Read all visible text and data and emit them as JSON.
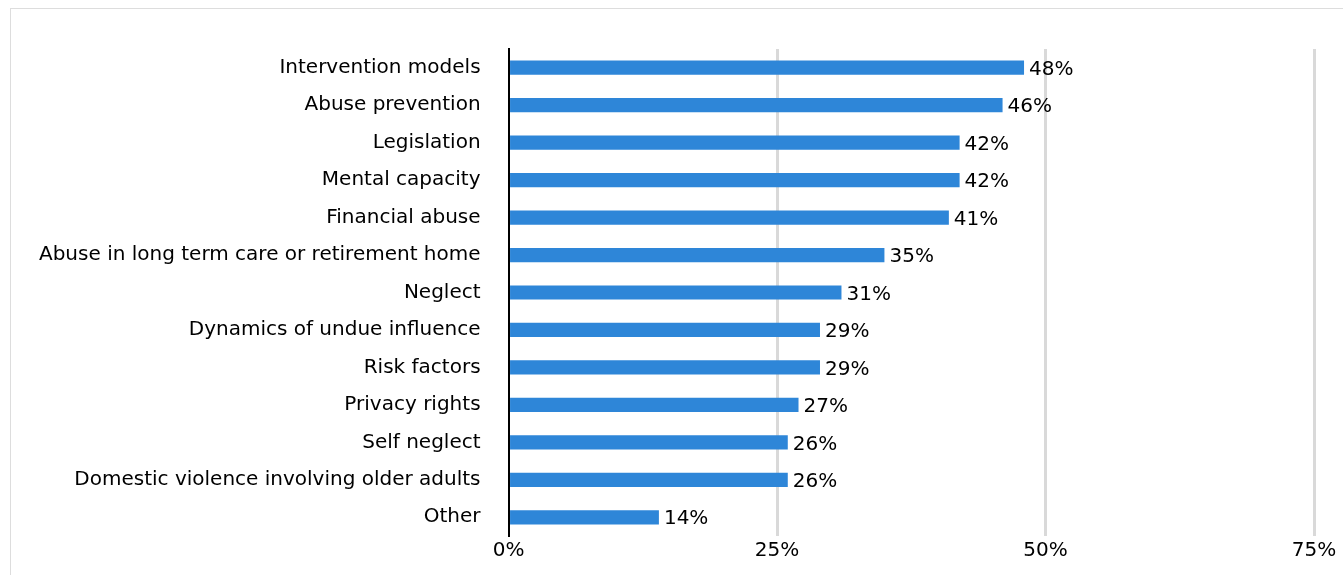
{
  "chart_data": {
    "type": "bar",
    "orientation": "horizontal",
    "categories": [
      "Intervention models",
      "Abuse prevention",
      "Legislation",
      "Mental capacity",
      "Financial abuse",
      "Abuse in long term care or retirement home",
      "Neglect",
      "Dynamics of undue influence",
      "Risk factors",
      "Privacy rights",
      "Self neglect",
      "Domestic violence involving older adults",
      "Other"
    ],
    "values": [
      48,
      46,
      42,
      42,
      41,
      35,
      31,
      29,
      29,
      27,
      26,
      26,
      14
    ],
    "value_labels": [
      "48%",
      "46%",
      "42%",
      "42%",
      "41%",
      "35%",
      "31%",
      "29%",
      "29%",
      "27%",
      "26%",
      "26%",
      "14%"
    ],
    "color": "#2e86d8",
    "xlim": [
      0,
      75
    ],
    "xticks": [
      {
        "value": 0,
        "label": "0%"
      },
      {
        "value": 25,
        "label": "25%"
      },
      {
        "value": 50,
        "label": "50%"
      },
      {
        "value": 75,
        "label": "75%"
      }
    ],
    "grid": "x",
    "legend": false
  }
}
